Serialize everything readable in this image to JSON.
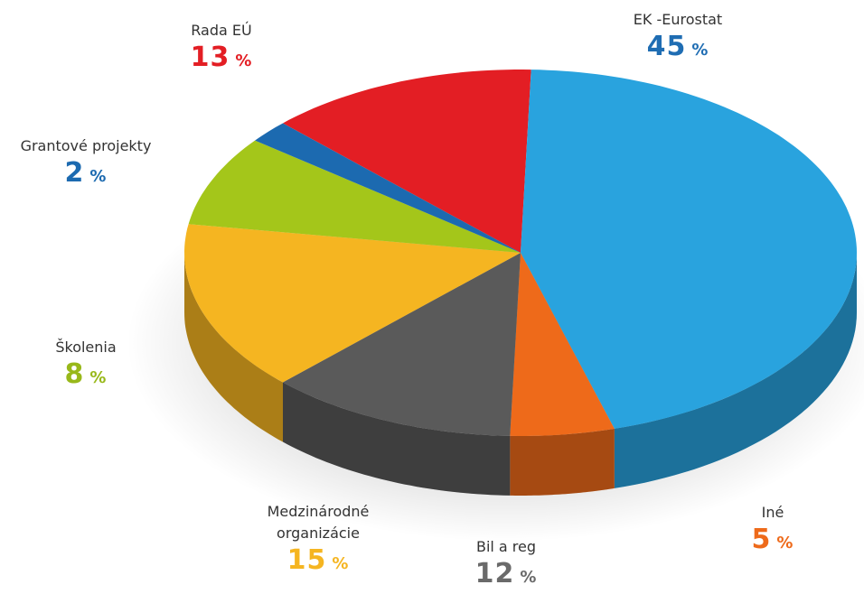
{
  "chart_data": {
    "type": "pie3d",
    "categories": [
      "Rada EÚ",
      "EK -Eurostat",
      "Iné",
      "Bil a reg",
      "Medzinárodné organizácie",
      "Školenia",
      "Grantové projekty"
    ],
    "values": [
      13,
      45,
      5,
      12,
      15,
      8,
      2
    ],
    "unit": "%",
    "colors": [
      "#e31e24",
      "#29a3de",
      "#ee6a1a",
      "#5a5a5a",
      "#f5b521",
      "#a4c61a",
      "#1c6ab0"
    ],
    "label_colors": [
      "#e31e24",
      "#1f6db3",
      "#ee6a1a",
      "#6a6a6a",
      "#f5b521",
      "#98b81a",
      "#1c6ab0"
    ]
  }
}
